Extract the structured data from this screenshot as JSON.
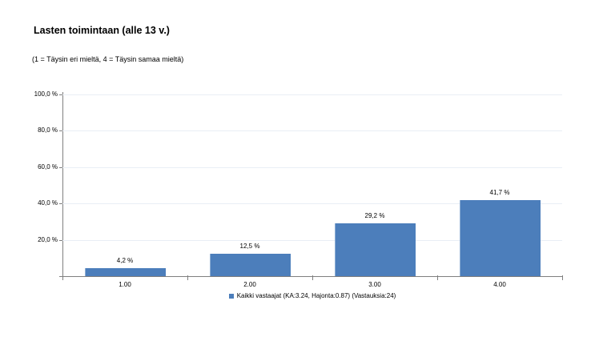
{
  "header": {
    "title": "Lasten toimintaan (alle 13 v.)",
    "subtitle": "(1 = Täysin eri mieltä, 4 = Täysin samaa mieltä)"
  },
  "chart_data": {
    "type": "bar",
    "title": "Lasten toimintaan (alle 13 v.)",
    "subtitle": "(1 = Täysin eri mieltä, 4 = Täysin samaa mieltä)",
    "categories": [
      "1.00",
      "2.00",
      "3.00",
      "4.00"
    ],
    "values": [
      4.2,
      12.5,
      29.2,
      41.7
    ],
    "value_labels": [
      "4,2 %",
      "12,5 %",
      "29,2 %",
      "41,7 %"
    ],
    "xlabel": "",
    "ylabel": "",
    "ylim": [
      0,
      100
    ],
    "yticks": [
      20,
      40,
      60,
      80,
      100
    ],
    "ytick_labels": [
      "20,0 %",
      "40,0 %",
      "60,0 %",
      "80,0 %",
      "100,0 %"
    ],
    "grid": true,
    "legend": {
      "position": "bottom",
      "entries": [
        {
          "label": "Kaikki vastaajat (KA:3.24, Hajonta:0.87) (Vastauksia:24)",
          "color": "#4c7ebb"
        }
      ]
    }
  },
  "colors": {
    "bar": "#4c7ebb",
    "bar_edge": "#8fafd4",
    "axis": "#7f7f7f",
    "gridline": "#e9eef5",
    "text": "#000000",
    "background": "#ffffff"
  }
}
